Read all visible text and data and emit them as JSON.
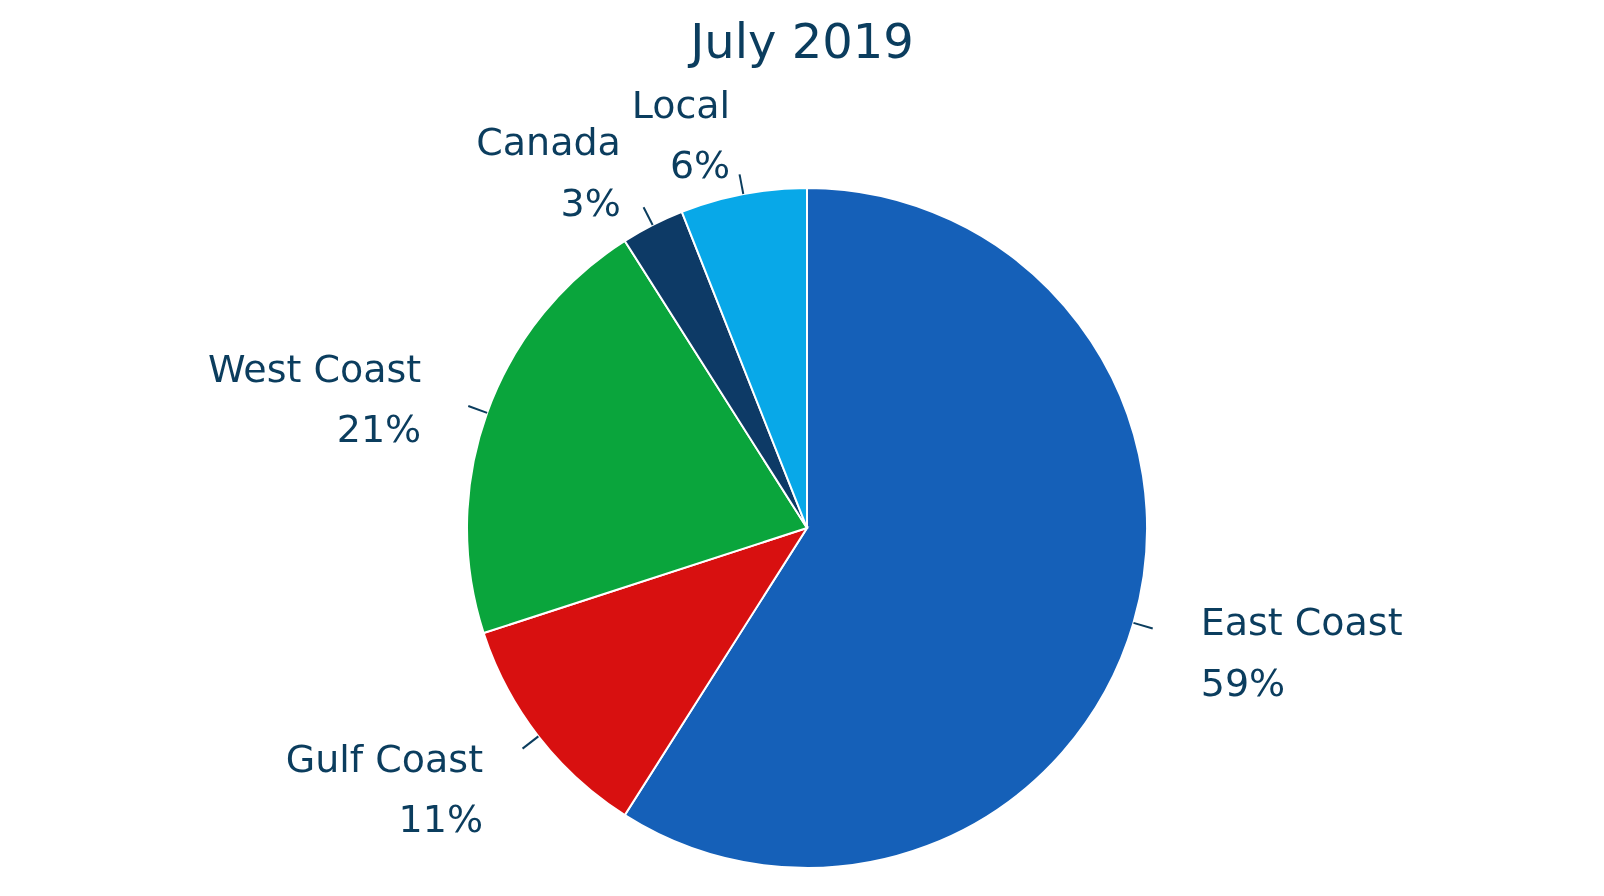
{
  "chart_data": {
    "type": "pie",
    "title": "July 2019",
    "categories": [
      "East Coast",
      "Gulf Coast",
      "West Coast",
      "Canada",
      "Local"
    ],
    "values": [
      59,
      11,
      21,
      3,
      6
    ],
    "colors": [
      "#1560b8",
      "#d81010",
      "#0aa53c",
      "#0d3a66",
      "#08a8e8"
    ],
    "value_labels": [
      "59%",
      "11%",
      "21%",
      "3%",
      "6%"
    ]
  }
}
